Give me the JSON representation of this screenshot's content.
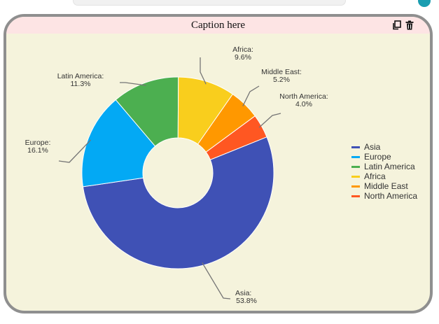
{
  "widget": {
    "caption": "Caption here"
  },
  "icons": {
    "copy": "copy-icon",
    "delete": "trash-icon"
  },
  "chart_data": {
    "type": "pie",
    "donut": true,
    "title": "",
    "legend_position": "right",
    "slices": [
      {
        "label": "Asia",
        "value": 53.8,
        "display": "53.8%",
        "color": "#3f51b5"
      },
      {
        "label": "Europe",
        "value": 16.1,
        "display": "16.1%",
        "color": "#03a9f4"
      },
      {
        "label": "Latin America",
        "value": 11.3,
        "display": "11.3%",
        "color": "#4caf50"
      },
      {
        "label": "Africa",
        "value": 9.6,
        "display": "9.6%",
        "color": "#f9ce1d"
      },
      {
        "label": "Middle East",
        "value": 5.2,
        "display": "5.2%",
        "color": "#ff9800"
      },
      {
        "label": "North America",
        "value": 4.0,
        "display": "4.0%",
        "color": "#ff5722"
      }
    ]
  }
}
